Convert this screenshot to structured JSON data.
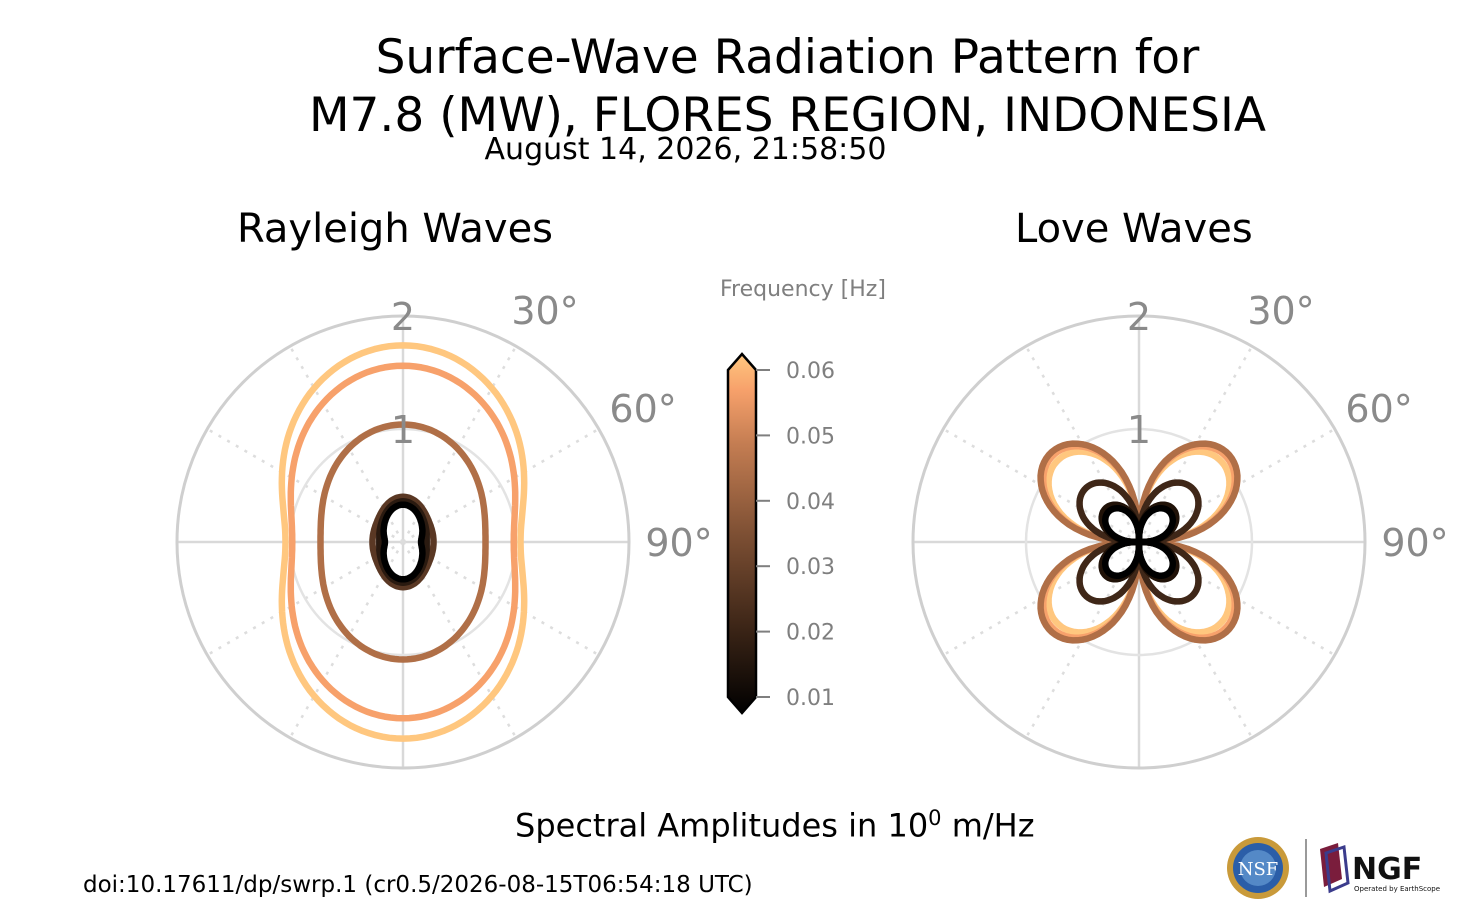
{
  "title": {
    "line1": "Surface-Wave Radiation Pattern for",
    "line2": "M7.8 (MW), FLORES REGION, INDONESIA",
    "subtitle": "August 14, 2026, 21:58:50"
  },
  "panels": {
    "rayleigh_title": "Rayleigh Waves",
    "love_title": "Love Waves"
  },
  "colorbar": {
    "label": "Frequency [Hz]",
    "ticks": [
      "0.06",
      "0.05",
      "0.04",
      "0.03",
      "0.02",
      "0.01"
    ],
    "colormap": "copper",
    "extend": "both"
  },
  "amplitude_label": {
    "prefix": "Spectral Amplitudes in 10",
    "exponent": "0",
    "suffix": " m/Hz"
  },
  "doi": "doi:10.17611/dp/swrp.1 (cr0.5/2026-08-15T06:54:18 UTC)",
  "logos": {
    "nsf": "NSF",
    "ngf": "NGF",
    "ngf_caption": "Operated by EarthScope"
  },
  "chart_data": [
    {
      "type": "polar",
      "name": "Rayleigh Waves",
      "r_ticks": [
        "1",
        "2"
      ],
      "theta_ticks": [
        "30°",
        "60°",
        "90°"
      ],
      "rmax": 2,
      "series": [
        {
          "freq": 0.06,
          "color": "#ffc77f",
          "r_at_0": 1.74,
          "r_at_90": 1.04
        },
        {
          "freq": 0.05,
          "color": "#f7a16b",
          "r_at_0": 1.56,
          "r_at_90": 0.98
        },
        {
          "freq": 0.04,
          "color": "#b06f47",
          "r_at_0": 1.04,
          "r_at_90": 0.73
        },
        {
          "freq": 0.03,
          "color": "#5a3824",
          "r_at_0": 0.4,
          "r_at_90": 0.27
        },
        {
          "freq": 0.02,
          "color": "#2a1a10",
          "r_at_0": 0.36,
          "r_at_90": 0.21
        },
        {
          "freq": 0.01,
          "color": "#000000",
          "r_at_0": 0.33,
          "r_at_90": 0.16
        }
      ]
    },
    {
      "type": "polar",
      "name": "Love Waves",
      "r_ticks": [
        "1",
        "2"
      ],
      "theta_ticks": [
        "30°",
        "60°",
        "90°"
      ],
      "rmax": 2,
      "series": [
        {
          "freq": 0.06,
          "color": "#ffc77f",
          "peak": 1.0
        },
        {
          "freq": 0.05,
          "color": "#f7a16b",
          "peak": 1.06
        },
        {
          "freq": 0.04,
          "color": "#b06f47",
          "peak": 1.09
        },
        {
          "freq": 0.03,
          "color": "#3f2718",
          "peak": 0.65
        },
        {
          "freq": 0.02,
          "color": "#201208",
          "peak": 0.4
        },
        {
          "freq": 0.01,
          "color": "#000000",
          "peak": 0.36
        }
      ]
    }
  ]
}
